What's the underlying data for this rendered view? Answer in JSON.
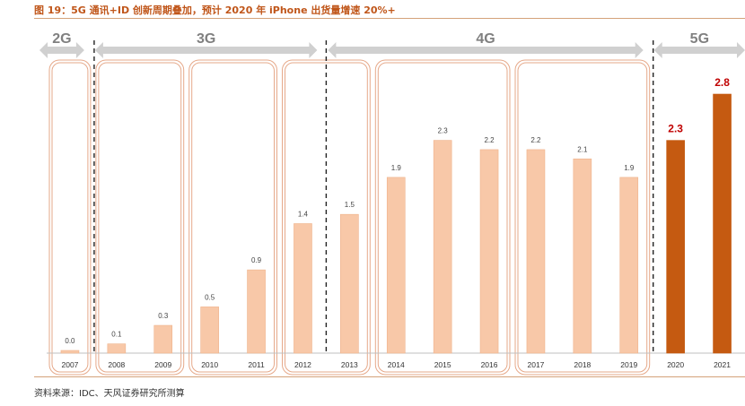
{
  "figure_title": "图 19：5G 通讯+ID 创新周期叠加，预计 2020 年 iPhone 出货量增速 20%+",
  "source_note": "资料来源：IDC、天风证券研究所测算",
  "colors": {
    "bar_light": "#f8c8a8",
    "bar_dark": "#c55a11",
    "label_highlight": "#c00000",
    "arrow": "#d0d0d0",
    "arrow_text": "#808080",
    "group_box": "#e6a98a",
    "divider": "#222222",
    "axis": "#bfbfbf"
  },
  "chart_data": {
    "type": "bar",
    "categories": [
      "2007",
      "2008",
      "2009",
      "2010",
      "2011",
      "2012",
      "2013",
      "2014",
      "2015",
      "2016",
      "2017",
      "2018",
      "2019",
      "2020",
      "2021"
    ],
    "values": [
      0.0,
      0.1,
      0.3,
      0.5,
      0.9,
      1.4,
      1.5,
      1.9,
      2.3,
      2.2,
      2.2,
      2.1,
      1.9,
      2.3,
      2.8
    ],
    "value_labels": [
      "0.0",
      "0.1",
      "0.3",
      "0.5",
      "0.9",
      "1.4",
      "1.5",
      "1.9",
      "2.3",
      "2.2",
      "2.2",
      "2.1",
      "1.9",
      "2.3",
      "2.8"
    ],
    "highlighted": [
      false,
      false,
      false,
      false,
      false,
      false,
      false,
      false,
      false,
      false,
      false,
      false,
      false,
      true,
      true
    ],
    "ylim": [
      0,
      2.8
    ],
    "eras": [
      {
        "label": "2G",
        "from": "2007",
        "to": "2007"
      },
      {
        "label": "3G",
        "from": "2008",
        "to": "2012"
      },
      {
        "label": "4G",
        "from": "2013",
        "to": "2019"
      },
      {
        "label": "5G",
        "from": "2020",
        "to": "2021"
      }
    ],
    "cycles": [
      [
        "2007"
      ],
      [
        "2008",
        "2009"
      ],
      [
        "2010",
        "2011"
      ],
      [
        "2012",
        "2013"
      ],
      [
        "2014",
        "2015",
        "2016"
      ],
      [
        "2017",
        "2018",
        "2019"
      ]
    ],
    "title": "",
    "xlabel": "",
    "ylabel": "",
    "grid": false
  }
}
